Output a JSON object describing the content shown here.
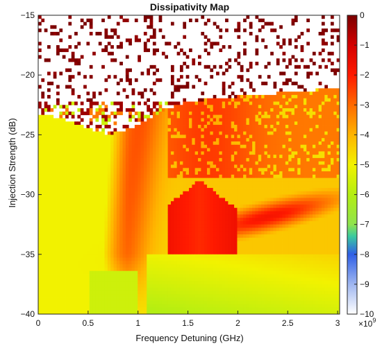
{
  "chart_data": {
    "type": "heatmap",
    "title": "Dissipativity Map",
    "xlabel": "Frequency Detuning (GHz)",
    "ylabel": "Injection Strength (dB)",
    "xlim": [
      0,
      3.02
    ],
    "ylim": [
      -40,
      -15
    ],
    "x_ticks": [
      0,
      0.5,
      1,
      1.5,
      2,
      2.5,
      3
    ],
    "x_tick_labels": [
      "0",
      "0.5",
      "1",
      "1.5",
      "2",
      "2.5",
      "3"
    ],
    "y_ticks": [
      -15,
      -20,
      -25,
      -30,
      -35,
      -40
    ],
    "y_tick_labels": [
      "−15",
      "−20",
      "−25",
      "−30",
      "−35",
      "−40"
    ],
    "colorbar": {
      "min": -10,
      "max": 0,
      "ticks": [
        0,
        -1,
        -2,
        -3,
        -4,
        -5,
        -6,
        -7,
        -8,
        -9,
        -10
      ],
      "tick_labels": [
        "0",
        "−1",
        "−2",
        "−3",
        "−4",
        "−5",
        "−6",
        "−7",
        "−8",
        "−9",
        "−10"
      ],
      "exponent_base": "×10",
      "exponent_power": "9",
      "colormap": [
        {
          "v": -10,
          "color": "#ffffff"
        },
        {
          "v": -9,
          "color": "#9fb6f0"
        },
        {
          "v": -8,
          "color": "#2f5fe6"
        },
        {
          "v": -7.4,
          "color": "#39c9a0"
        },
        {
          "v": -7,
          "color": "#8fe34e"
        },
        {
          "v": -6,
          "color": "#b4ee12"
        },
        {
          "v": -5,
          "color": "#f2f200"
        },
        {
          "v": -4,
          "color": "#ffb400"
        },
        {
          "v": -3,
          "color": "#ff6a00"
        },
        {
          "v": -2,
          "color": "#ff1a00"
        },
        {
          "v": -1,
          "color": "#d40000"
        },
        {
          "v": 0,
          "color": "#7a0000"
        }
      ]
    }
  }
}
